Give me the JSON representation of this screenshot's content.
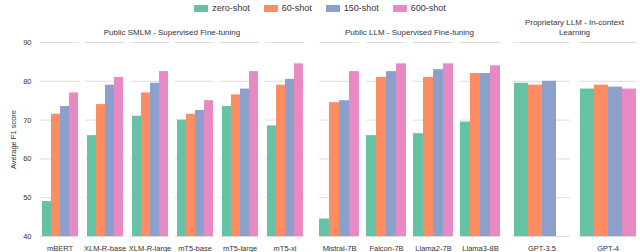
{
  "chart_data": [
    {
      "type": "bar",
      "title": "Public SMLM - Supervised Fine-tuning",
      "y_label": "Average F1 score",
      "categories": [
        "mBERT",
        "XLM-R-base",
        "XLM-R-large",
        "mT5-base",
        "mT5-large",
        "mT5-xl"
      ],
      "series": [
        {
          "name": "zero-shot",
          "color": "#66c2a5",
          "values": [
            49,
            66,
            71,
            70,
            73.5,
            68.5
          ]
        },
        {
          "name": "60-shot",
          "color": "#fc8d62",
          "values": [
            71.5,
            74,
            77,
            71.5,
            76.5,
            79
          ]
        },
        {
          "name": "150-shot",
          "color": "#8da0cb",
          "values": [
            73.5,
            79,
            79.5,
            72.5,
            78,
            80.5
          ]
        },
        {
          "name": "600-shot",
          "color": "#e78ac3",
          "values": [
            77,
            81,
            82.5,
            75,
            82.5,
            84.5
          ]
        }
      ],
      "ylim": [
        40,
        90
      ],
      "yticks": [
        40,
        50,
        60,
        70,
        80,
        90
      ],
      "grid": true,
      "legend": "top"
    },
    {
      "type": "bar",
      "title": "Public LLM - Supervised Fine-tuning",
      "categories": [
        "Mistral-7B",
        "Falcon-7B",
        "Llama2-7B",
        "Llama3-8B"
      ],
      "series": [
        {
          "name": "zero-shot",
          "color": "#66c2a5",
          "values": [
            44.5,
            66,
            66.5,
            69.5
          ]
        },
        {
          "name": "60-shot",
          "color": "#fc8d62",
          "values": [
            74.5,
            81,
            81,
            82
          ]
        },
        {
          "name": "150-shot",
          "color": "#8da0cb",
          "values": [
            75,
            82.5,
            83,
            82
          ]
        },
        {
          "name": "600-shot",
          "color": "#e78ac3",
          "values": [
            82.5,
            84.5,
            84.5,
            84
          ]
        }
      ],
      "ylim": [
        40,
        90
      ],
      "yticks": [
        40,
        50,
        60,
        70,
        80,
        90
      ],
      "grid": true,
      "tick_labels": "x"
    },
    {
      "type": "bar",
      "title": "Proprietary LLM - In-context Learning",
      "categories": [
        "GPT-3.5",
        "GPT-4"
      ],
      "series": [
        {
          "name": "zero-shot",
          "color": "#66c2a5",
          "values": [
            79.5,
            78
          ]
        },
        {
          "name": "60-shot",
          "color": "#fc8d62",
          "values": [
            79,
            79
          ]
        },
        {
          "name": "150-shot",
          "color": "#8da0cb",
          "values": [
            80,
            78.5
          ]
        },
        {
          "name": "600-shot",
          "color": "#e78ac3",
          "values": [
            null,
            78
          ]
        }
      ],
      "ylim": [
        40,
        90
      ],
      "yticks": [
        40,
        50,
        60,
        70,
        80,
        90
      ],
      "grid": true,
      "tick_labels": "x"
    }
  ]
}
